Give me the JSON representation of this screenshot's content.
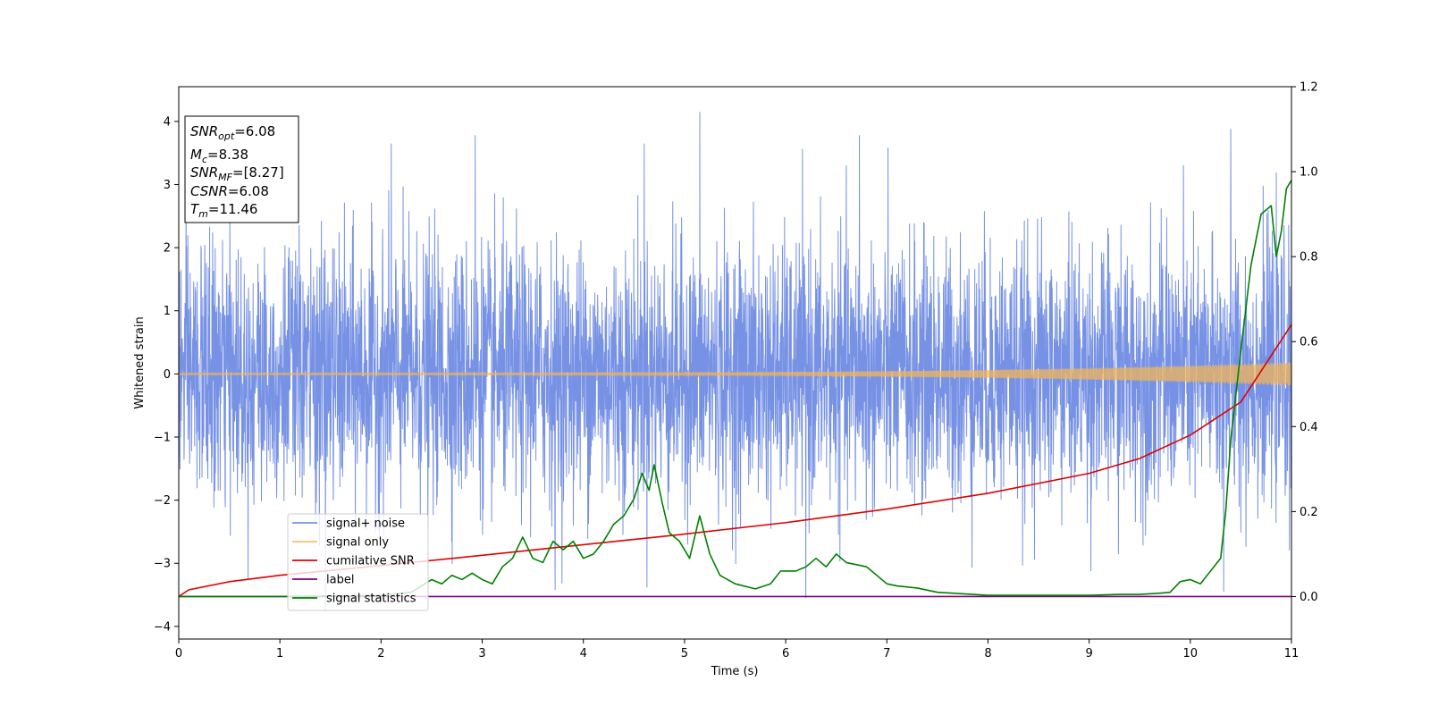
{
  "chart_data": {
    "type": "line",
    "title": "",
    "xlabel": "Time (s)",
    "ylabel": "Whitened strain",
    "ylabel_right": "",
    "xlim": [
      0,
      11
    ],
    "ylim": [
      -4.2,
      4.55
    ],
    "ylim_right": [
      -0.1,
      1.2
    ],
    "x_ticks": [
      0,
      1,
      2,
      3,
      4,
      5,
      6,
      7,
      8,
      9,
      10,
      11
    ],
    "y_ticks": [
      -4,
      -3,
      -2,
      -1,
      0,
      1,
      2,
      3,
      4
    ],
    "y_ticks_right": [
      0.0,
      0.2,
      0.4,
      0.6,
      0.8,
      1.0,
      1.2
    ],
    "grid": false,
    "legend_position": "lower-left",
    "info_box": {
      "lines": [
        {
          "sym": "SNR",
          "sub": "opt",
          "rest": "=6.08"
        },
        {
          "sym": "M",
          "sub": "c",
          "rest": "=8.38"
        },
        {
          "sym": "SNR",
          "sub": "MF",
          "rest": "=[8.27]"
        },
        {
          "sym": "CSNR",
          "sub": "",
          "rest": "=6.08"
        },
        {
          "sym": "T",
          "sub": "m",
          "rest": "=11.46"
        }
      ]
    },
    "series": [
      {
        "name": "signal+ noise",
        "axis": "left",
        "color": "#5f7fe0",
        "kind": "noise",
        "noise_sd": 1.0,
        "peaks": [
          [
            5.15,
            4.15
          ],
          [
            4.6,
            3.65
          ],
          [
            2.1,
            3.65
          ],
          [
            2.93,
            3.78
          ],
          [
            6.73,
            3.78
          ],
          [
            10.4,
            3.88
          ],
          [
            1.45,
            -3.75
          ],
          [
            6.2,
            -3.55
          ],
          [
            3.72,
            -3.42
          ],
          [
            10.33,
            -3.45
          ]
        ]
      },
      {
        "name": "signal only",
        "axis": "left",
        "color": "#f2b45a",
        "kind": "chirp",
        "amp_start": 0.015,
        "amp_end": 0.19
      },
      {
        "name": "cumilative SNR",
        "axis": "right",
        "color": "#e00000",
        "x": [
          0,
          0.1,
          0.5,
          1,
          2,
          3,
          4,
          5,
          6,
          7,
          8,
          9,
          9.5,
          10,
          10.5,
          11
        ],
        "y": [
          0.0,
          0.016,
          0.035,
          0.05,
          0.073,
          0.097,
          0.122,
          0.147,
          0.174,
          0.206,
          0.243,
          0.29,
          0.325,
          0.38,
          0.458,
          0.64
        ]
      },
      {
        "name": "label",
        "axis": "right",
        "color": "#800080",
        "x": [
          0,
          11
        ],
        "y": [
          0.0,
          0.0
        ]
      },
      {
        "name": "signal statistics",
        "axis": "right",
        "color": "#008000",
        "x": [
          0,
          1,
          2,
          2.3,
          2.5,
          2.6,
          2.7,
          2.8,
          2.9,
          3.0,
          3.1,
          3.2,
          3.3,
          3.4,
          3.5,
          3.6,
          3.7,
          3.8,
          3.9,
          4.0,
          4.1,
          4.2,
          4.3,
          4.4,
          4.5,
          4.58,
          4.65,
          4.7,
          4.78,
          4.85,
          4.95,
          5.05,
          5.15,
          5.25,
          5.35,
          5.5,
          5.7,
          5.85,
          5.95,
          6.1,
          6.2,
          6.3,
          6.4,
          6.5,
          6.6,
          6.8,
          7.0,
          7.1,
          7.3,
          7.5,
          8.0,
          8.5,
          9.0,
          9.3,
          9.5,
          9.7,
          9.8,
          9.9,
          10.0,
          10.1,
          10.2,
          10.3,
          10.35,
          10.4,
          10.5,
          10.6,
          10.7,
          10.8,
          10.85,
          10.9,
          10.95,
          11.0
        ],
        "y": [
          0.0,
          0.0,
          0.003,
          0.01,
          0.04,
          0.03,
          0.05,
          0.04,
          0.055,
          0.04,
          0.03,
          0.07,
          0.09,
          0.14,
          0.09,
          0.08,
          0.13,
          0.11,
          0.13,
          0.09,
          0.1,
          0.13,
          0.17,
          0.19,
          0.23,
          0.29,
          0.25,
          0.31,
          0.22,
          0.15,
          0.13,
          0.09,
          0.19,
          0.1,
          0.05,
          0.03,
          0.018,
          0.03,
          0.06,
          0.06,
          0.07,
          0.09,
          0.07,
          0.1,
          0.08,
          0.07,
          0.03,
          0.025,
          0.02,
          0.01,
          0.003,
          0.003,
          0.003,
          0.005,
          0.005,
          0.008,
          0.01,
          0.035,
          0.04,
          0.03,
          0.06,
          0.09,
          0.2,
          0.37,
          0.58,
          0.78,
          0.9,
          0.92,
          0.8,
          0.86,
          0.96,
          0.98
        ]
      }
    ]
  }
}
